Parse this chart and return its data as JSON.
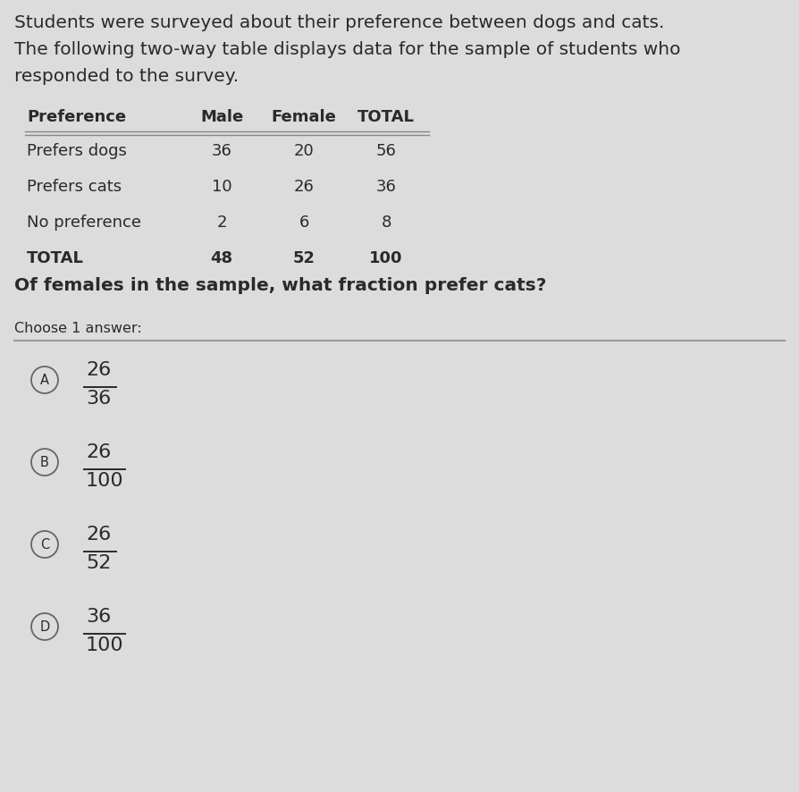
{
  "background_color": "#dcdcdc",
  "intro_text_line1": "Students were surveyed about their preference between dogs and cats.",
  "intro_text_line2": "The following two-way table displays data for the sample of students who",
  "intro_text_line3": "responded to the survey.",
  "table_headers": [
    "Preference",
    "Male",
    "Female",
    "TOTAL"
  ],
  "table_rows": [
    [
      "Prefers dogs",
      "36",
      "20",
      "56"
    ],
    [
      "Prefers cats",
      "10",
      "26",
      "36"
    ],
    [
      "No preference",
      "2",
      "6",
      "8"
    ],
    [
      "TOTAL",
      "48",
      "52",
      "100"
    ]
  ],
  "question_text": "Of females in the sample, what fraction prefer cats?",
  "choose_text": "Choose 1 answer:",
  "answers": [
    {
      "label": "A",
      "numerator": "26",
      "denominator": "36"
    },
    {
      "label": "B",
      "numerator": "26",
      "denominator": "100"
    },
    {
      "label": "C",
      "numerator": "26",
      "denominator": "52"
    },
    {
      "label": "D",
      "numerator": "36",
      "denominator": "100"
    }
  ],
  "text_color": "#2a2a2a",
  "table_line_color": "#888888",
  "divider_line_color": "#999999",
  "circle_edge_color": "#666666",
  "font_size_intro": 14.5,
  "font_size_table_header": 13,
  "font_size_table": 13,
  "font_size_question": 14.5,
  "font_size_choose": 11.5,
  "font_size_answers": 16,
  "font_size_label": 10.5
}
